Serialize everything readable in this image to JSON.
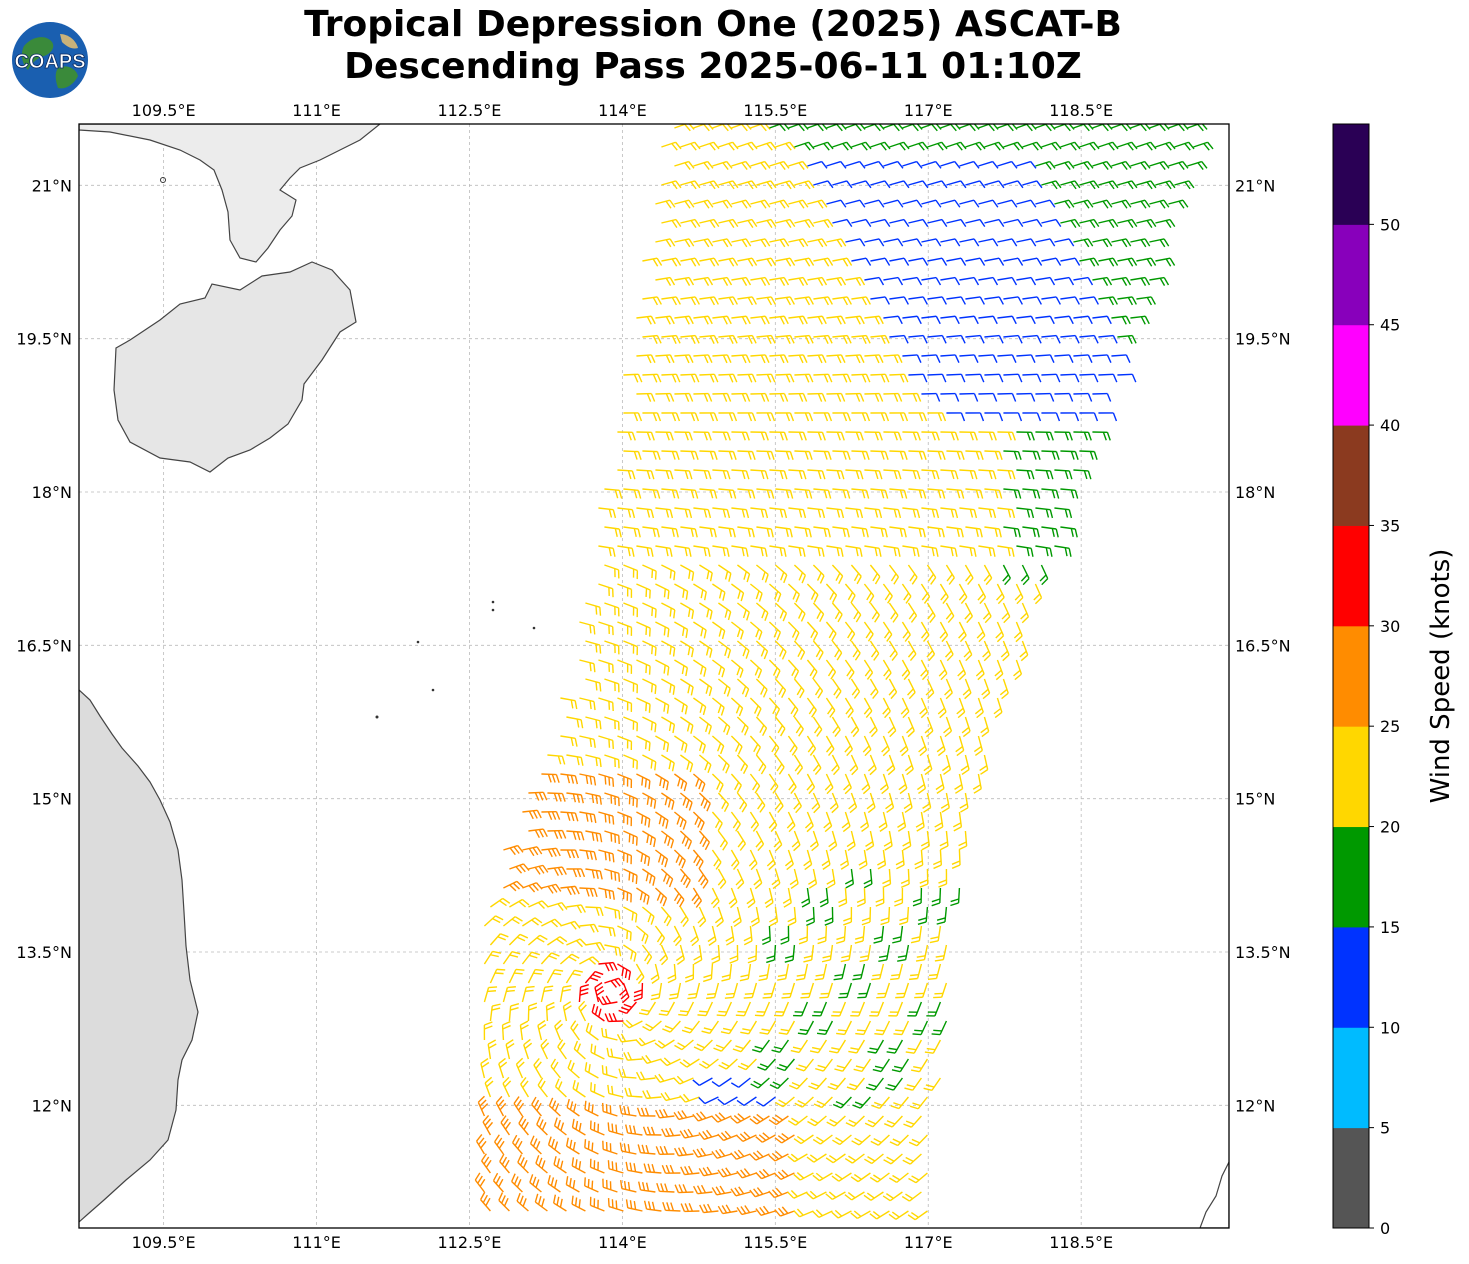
{
  "title": {
    "line1": "Tropical Depression One (2025) ASCAT-B",
    "line2": "Descending Pass 2025-06-11 01:10Z"
  },
  "logo": {
    "text": "COAPS",
    "icon": "globe-icon"
  },
  "map": {
    "lon_range": [
      108.67,
      119.95
    ],
    "lat_range": [
      10.8,
      21.6
    ],
    "lon_ticks": [
      "109.5°E",
      "111°E",
      "112.5°E",
      "114°E",
      "115.5°E",
      "117°E",
      "118.5°E"
    ],
    "lon_tick_values": [
      109.5,
      111,
      112.5,
      114,
      115.5,
      117,
      118.5
    ],
    "lat_ticks": [
      "21°N",
      "19.5°N",
      "18°N",
      "16.5°N",
      "15°N",
      "13.5°N",
      "12°N"
    ],
    "lat_tick_values": [
      21,
      19.5,
      18,
      16.5,
      15,
      13.5,
      12
    ],
    "grid": true
  },
  "colorbar": {
    "label": "Wind Speed (knots)",
    "ticks": [
      "0",
      "5",
      "10",
      "15",
      "20",
      "25",
      "30",
      "35",
      "40",
      "45",
      "50"
    ],
    "colors": [
      "#555555",
      "#00bbff",
      "#0033ff",
      "#009900",
      "#ffd700",
      "#ff8c00",
      "#ff0000",
      "#8b3a1f",
      "#ff00ff",
      "#8800bb",
      "#2a0055"
    ]
  },
  "chart_data": {
    "type": "wind-barb-map",
    "title": "Tropical Depression One (2025) ASCAT-B Descending Pass 2025-06-11 01:10Z",
    "xlabel": "",
    "ylabel": "",
    "xlim": [
      108.67,
      119.95
    ],
    "ylim": [
      10.8,
      21.6
    ],
    "colorbar_label": "Wind Speed (knots)",
    "colorbar_bins_kt": [
      0,
      5,
      10,
      15,
      20,
      25,
      30,
      35,
      40,
      45,
      50
    ],
    "swath_corners": [
      [
        115.5,
        21.6
      ],
      [
        119.7,
        21.6
      ],
      [
        117.4,
        14.9
      ],
      [
        117.0,
        10.8
      ],
      [
        112.4,
        10.8
      ],
      [
        112.0,
        12.3
      ],
      [
        113.5,
        16.3
      ],
      [
        114.4,
        21.6
      ]
    ],
    "circulation_center_approx": [
      113.9,
      13.1
    ],
    "speed_regions": [
      {
        "region": "northeast swath",
        "speed_kt": "15-20",
        "color": "green"
      },
      {
        "region": "NE interior band",
        "speed_kt": "10-15",
        "color": "blue"
      },
      {
        "region": "central swath",
        "speed_kt": "20-25",
        "color": "yellow"
      },
      {
        "region": "west of center",
        "speed_kt": "25-30",
        "color": "orange"
      },
      {
        "region": "near center",
        "speed_kt": "30-35",
        "color": "red"
      }
    ]
  }
}
